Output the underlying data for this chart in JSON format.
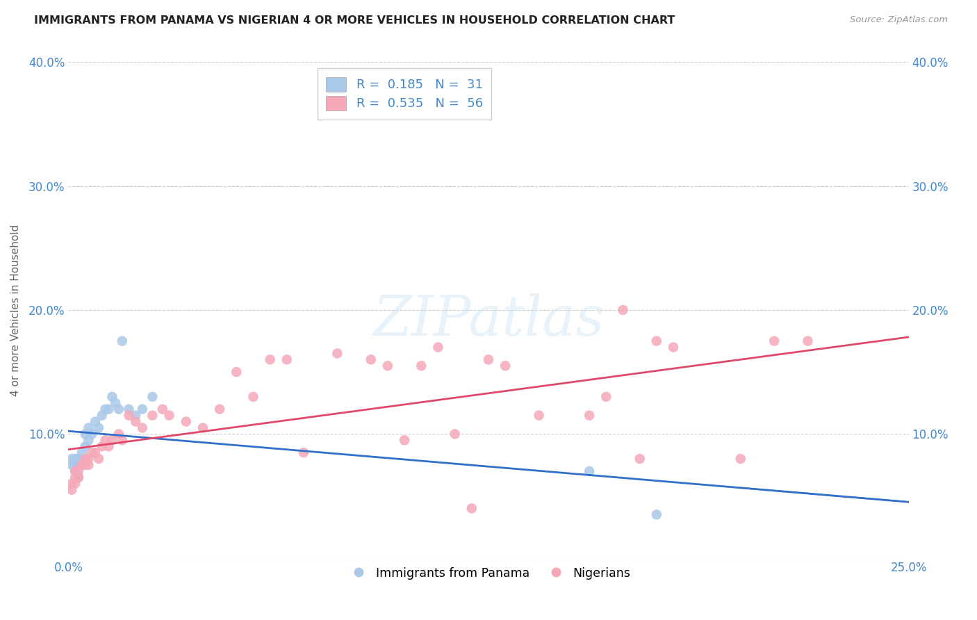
{
  "title": "IMMIGRANTS FROM PANAMA VS NIGERIAN 4 OR MORE VEHICLES IN HOUSEHOLD CORRELATION CHART",
  "source": "Source: ZipAtlas.com",
  "ylabel": "4 or more Vehicles in Household",
  "xlim": [
    0.0,
    0.25
  ],
  "ylim": [
    0.0,
    0.4
  ],
  "xticks": [
    0.0,
    0.05,
    0.1,
    0.15,
    0.2,
    0.25
  ],
  "yticks": [
    0.0,
    0.1,
    0.2,
    0.3,
    0.4
  ],
  "xtick_labels": [
    "0.0%",
    "",
    "",
    "",
    "",
    "25.0%"
  ],
  "ytick_labels_left": [
    "",
    "10.0%",
    "20.0%",
    "30.0%",
    "40.0%"
  ],
  "ytick_labels_right": [
    "",
    "10.0%",
    "20.0%",
    "30.0%",
    "40.0%"
  ],
  "panama_R": 0.185,
  "panama_N": 31,
  "nigerian_R": 0.535,
  "nigerian_N": 56,
  "panama_color": "#aac8e8",
  "nigerian_color": "#f5a8b8",
  "panama_line_color": "#3070c8",
  "nigerian_line_color": "#e04868",
  "watermark_text": "ZIPatlas",
  "panama_x": [
    0.001,
    0.001,
    0.002,
    0.002,
    0.002,
    0.003,
    0.003,
    0.003,
    0.004,
    0.004,
    0.004,
    0.005,
    0.005,
    0.006,
    0.006,
    0.007,
    0.008,
    0.009,
    0.01,
    0.011,
    0.012,
    0.013,
    0.014,
    0.015,
    0.016,
    0.018,
    0.02,
    0.022,
    0.025,
    0.155,
    0.175
  ],
  "panama_y": [
    0.075,
    0.08,
    0.07,
    0.075,
    0.08,
    0.065,
    0.075,
    0.08,
    0.075,
    0.08,
    0.085,
    0.09,
    0.1,
    0.095,
    0.105,
    0.1,
    0.11,
    0.105,
    0.115,
    0.12,
    0.12,
    0.13,
    0.125,
    0.12,
    0.175,
    0.12,
    0.115,
    0.12,
    0.13,
    0.07,
    0.035
  ],
  "nigerian_x": [
    0.001,
    0.001,
    0.002,
    0.002,
    0.002,
    0.003,
    0.003,
    0.004,
    0.004,
    0.005,
    0.005,
    0.006,
    0.006,
    0.007,
    0.008,
    0.009,
    0.01,
    0.011,
    0.012,
    0.013,
    0.015,
    0.016,
    0.018,
    0.02,
    0.022,
    0.025,
    0.028,
    0.03,
    0.035,
    0.04,
    0.045,
    0.05,
    0.055,
    0.06,
    0.065,
    0.07,
    0.08,
    0.09,
    0.095,
    0.1,
    0.105,
    0.11,
    0.115,
    0.12,
    0.125,
    0.13,
    0.14,
    0.155,
    0.16,
    0.165,
    0.17,
    0.175,
    0.18,
    0.2,
    0.21,
    0.22
  ],
  "nigerian_y": [
    0.055,
    0.06,
    0.06,
    0.065,
    0.07,
    0.065,
    0.07,
    0.075,
    0.075,
    0.075,
    0.08,
    0.075,
    0.08,
    0.085,
    0.085,
    0.08,
    0.09,
    0.095,
    0.09,
    0.095,
    0.1,
    0.095,
    0.115,
    0.11,
    0.105,
    0.115,
    0.12,
    0.115,
    0.11,
    0.105,
    0.12,
    0.15,
    0.13,
    0.16,
    0.16,
    0.085,
    0.165,
    0.16,
    0.155,
    0.095,
    0.155,
    0.17,
    0.1,
    0.04,
    0.16,
    0.155,
    0.115,
    0.115,
    0.13,
    0.2,
    0.08,
    0.175,
    0.17,
    0.08,
    0.175,
    0.175
  ]
}
